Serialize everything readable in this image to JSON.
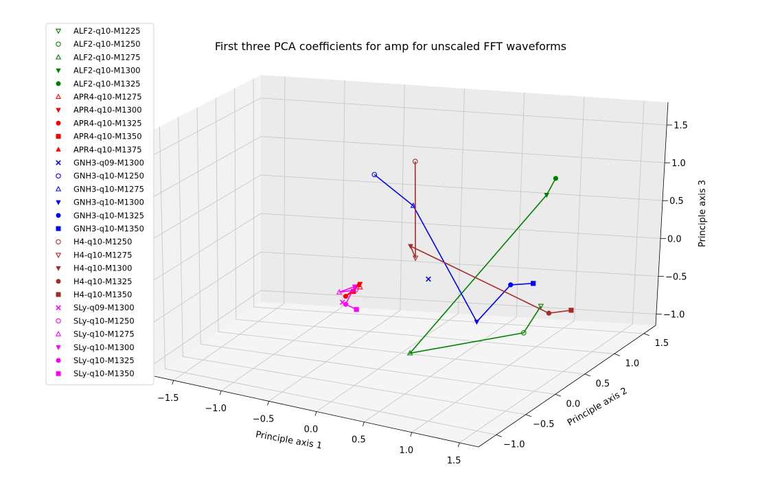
{
  "chart_data": {
    "type": "scatter",
    "projection": "3d",
    "title": "First three PCA coefficients for amp for unscaled FFT waveforms",
    "xlabel": "Principle axis 1",
    "ylabel": "Principle axis 2",
    "zlabel": "Principle axis 3",
    "xlim": [
      -1.7,
      1.7
    ],
    "ylim": [
      -1.3,
      1.7
    ],
    "zlim": [
      -1.15,
      1.8
    ],
    "xticks": [
      "−1.5",
      "−1.0",
      "−0.5",
      "0.0",
      "0.5",
      "1.0",
      "1.5"
    ],
    "yticks": [
      "−1.0",
      "−0.5",
      "0.0",
      "0.5",
      "1.0",
      "1.5"
    ],
    "zticks": [
      "−1.0",
      "−0.5",
      "0.0",
      "0.5",
      "1.0",
      "1.5"
    ],
    "grid": true,
    "legend_position": "upper-left",
    "groups": [
      {
        "name": "ALF2",
        "color": "#008000",
        "entries": [
          {
            "label": "ALF2-q10-M1225",
            "marker": "tri-down-open",
            "xyz": [
              1.15,
              0.75,
              -0.5
            ]
          },
          {
            "label": "ALF2-q10-M1250",
            "marker": "circle-open",
            "xyz": [
              1.15,
              0.45,
              -0.7
            ]
          },
          {
            "label": "ALF2-q10-M1275",
            "marker": "tri-up-open",
            "xyz": [
              0.5,
              -0.4,
              -0.7
            ]
          },
          {
            "label": "ALF2-q10-M1300",
            "marker": "tri-down",
            "xyz": [
              0.95,
              1.2,
              0.7
            ]
          },
          {
            "label": "ALF2-q10-M1325",
            "marker": "circle",
            "xyz": [
              1.0,
              1.25,
              0.9
            ]
          }
        ]
      },
      {
        "name": "APR4",
        "color": "#ff0000",
        "entries": [
          {
            "label": "APR4-q10-M1275",
            "marker": "tri-up-open",
            "xyz": [
              -0.45,
              0.65,
              -0.45
            ]
          },
          {
            "label": "APR4-q10-M1300",
            "marker": "tri-down",
            "xyz": [
              -0.47,
              0.7,
              -0.43
            ]
          },
          {
            "label": "APR4-q10-M1325",
            "marker": "circle",
            "xyz": [
              -0.5,
              0.45,
              -0.5
            ]
          },
          {
            "label": "APR4-q10-M1350",
            "marker": "square",
            "xyz": [
              -0.45,
              0.5,
              -0.45
            ]
          },
          {
            "label": "APR4-q10-M1375",
            "marker": "tri-up",
            "xyz": [
              -0.48,
              0.68,
              -0.44
            ]
          }
        ]
      },
      {
        "name": "GNH3",
        "color": "#0000ff",
        "entries": [
          {
            "label": "GNH3-q09-M1300",
            "marker": "x",
            "xyz": [
              0.65,
              -0.35,
              0.2
            ]
          },
          {
            "label": "GNH3-q10-M1250",
            "marker": "circle-open",
            "xyz": [
              0.1,
              -0.3,
              1.35
            ]
          },
          {
            "label": "GNH3-q10-M1275",
            "marker": "tri-up-open",
            "xyz": [
              0.55,
              -0.45,
              1.1
            ]
          },
          {
            "label": "GNH3-q10-M1300",
            "marker": "tri-down",
            "xyz": [
              1.15,
              -0.4,
              -0.2
            ]
          },
          {
            "label": "GNH3-q10-M1325",
            "marker": "circle",
            "xyz": [
              1.2,
              0.1,
              0.05
            ]
          },
          {
            "label": "GNH3-q10-M1350",
            "marker": "square",
            "xyz": [
              1.15,
              0.6,
              -0.15
            ]
          }
        ]
      },
      {
        "name": "H4",
        "color": "#a52a2a",
        "entries": [
          {
            "label": "H4-q10-M1250",
            "marker": "circle-open",
            "xyz": [
              0.15,
              0.4,
              1.3
            ]
          },
          {
            "label": "H4-q10-M1275",
            "marker": "tri-down-open",
            "xyz": [
              0.6,
              -0.5,
              0.5
            ]
          },
          {
            "label": "H4-q10-M1300",
            "marker": "tri-down",
            "xyz": [
              0.4,
              -0.2,
              0.5
            ]
          },
          {
            "label": "H4-q10-M1325",
            "marker": "circle",
            "xyz": [
              1.3,
              0.6,
              -0.5
            ]
          },
          {
            "label": "H4-q10-M1350",
            "marker": "square",
            "xyz": [
              1.25,
              1.1,
              -0.7
            ]
          }
        ]
      },
      {
        "name": "SLy",
        "color": "#ff00ff",
        "entries": [
          {
            "label": "SLy-q09-M1300",
            "marker": "x",
            "xyz": [
              -0.55,
              0.5,
              -0.6
            ]
          },
          {
            "label": "SLy-q10-M1250",
            "marker": "circle-open",
            "xyz": [
              -0.45,
              0.55,
              -0.45
            ]
          },
          {
            "label": "SLy-q10-M1275",
            "marker": "tri-up-open",
            "xyz": [
              -0.6,
              0.55,
              -0.5
            ]
          },
          {
            "label": "SLy-q10-M1300",
            "marker": "tri-down",
            "xyz": [
              -0.5,
              0.65,
              -0.45
            ]
          },
          {
            "label": "SLy-q10-M1325",
            "marker": "circle",
            "xyz": [
              -0.5,
              0.45,
              -0.6
            ]
          },
          {
            "label": "SLy-q10-M1350",
            "marker": "square",
            "xyz": [
              -0.4,
              0.45,
              -0.65
            ]
          }
        ]
      }
    ]
  }
}
